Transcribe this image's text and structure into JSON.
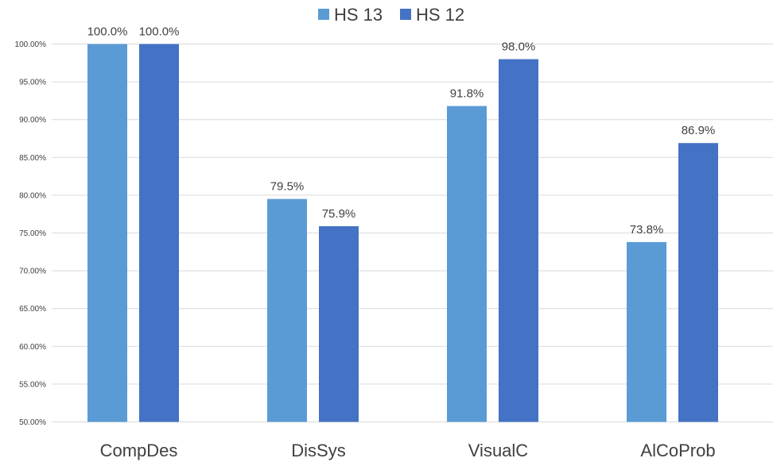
{
  "chart_data": {
    "type": "bar",
    "categories": [
      "CompDes",
      "DisSys",
      "VisualC",
      "AlCoProb"
    ],
    "series": [
      {
        "name": "HS 13",
        "color": "#5b9bd5",
        "values": [
          100.0,
          79.5,
          91.8,
          73.8
        ],
        "labels": [
          "100.0%",
          "79.5%",
          "91.8%",
          "73.8%"
        ]
      },
      {
        "name": "HS 12",
        "color": "#4472c4",
        "values": [
          100.0,
          75.9,
          98.0,
          86.9
        ],
        "labels": [
          "100.0%",
          "75.9%",
          "98.0%",
          "86.9%"
        ]
      }
    ],
    "ylim": [
      50,
      100
    ],
    "yticks": [
      50,
      55,
      60,
      65,
      70,
      75,
      80,
      85,
      90,
      95,
      100
    ],
    "ytick_labels": [
      "50.00%",
      "55.00%",
      "60.00%",
      "65.00%",
      "70.00%",
      "75.00%",
      "80.00%",
      "85.00%",
      "90.00%",
      "95.00%",
      "100.00%"
    ],
    "title": "",
    "xlabel": "",
    "ylabel": "",
    "grid": true,
    "legend_position": "top-center"
  }
}
